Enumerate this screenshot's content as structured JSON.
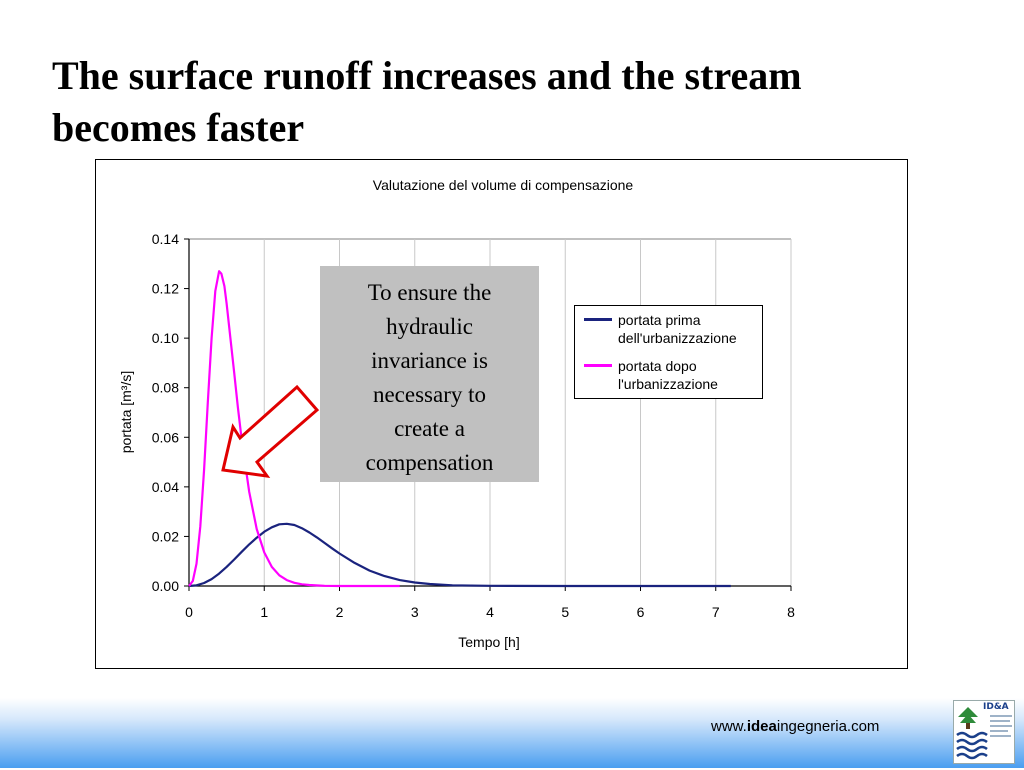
{
  "slide": {
    "title": "The surface runoff  increases and the stream\nbecomes faster"
  },
  "callout": {
    "text": "To ensure the\nhydraulic\ninvariance is\nnecessary to\ncreate a\ncompensation",
    "background": "#c0c0c0"
  },
  "arrow": {
    "color": "#e00000",
    "icon": "hollow-arrow-icon"
  },
  "footer": {
    "url_prefix": "www.",
    "url_bold": "idea",
    "url_suffix": "ingegneria.com",
    "logo_text": "ID&A"
  },
  "chart_data": {
    "type": "line",
    "title": "Valutazione del volume di compensazione",
    "xlabel": "Tempo [h]",
    "ylabel": "portata [m³/s]",
    "xlim": [
      0,
      8
    ],
    "ylim": [
      0,
      0.14
    ],
    "xticks": [
      "0",
      "1",
      "2",
      "3",
      "4",
      "5",
      "6",
      "7",
      "8"
    ],
    "yticks": [
      "0.00",
      "0.02",
      "0.04",
      "0.06",
      "0.08",
      "0.10",
      "0.12",
      "0.14"
    ],
    "grid": "vertical",
    "legend_position": "top-right",
    "series": [
      {
        "name": "portata prima\ndell'urbanizzazione",
        "color": "#1a237e",
        "x": [
          0,
          0.1,
          0.2,
          0.3,
          0.4,
          0.5,
          0.6,
          0.7,
          0.8,
          0.9,
          1.0,
          1.1,
          1.2,
          1.3,
          1.4,
          1.5,
          1.6,
          1.7,
          1.8,
          1.9,
          2.0,
          2.2,
          2.4,
          2.6,
          2.8,
          3.0,
          3.2,
          3.5,
          4.0,
          5.0,
          6.0,
          7.2
        ],
        "y": [
          0,
          0.0003,
          0.0012,
          0.0028,
          0.005,
          0.0077,
          0.0107,
          0.0138,
          0.0168,
          0.0195,
          0.0219,
          0.0237,
          0.0249,
          0.0251,
          0.0246,
          0.0233,
          0.0216,
          0.0196,
          0.0174,
          0.0152,
          0.0131,
          0.0093,
          0.0062,
          0.004,
          0.0024,
          0.0014,
          0.0008,
          0.0003,
          0.0001,
          0,
          0,
          0
        ]
      },
      {
        "name": "portata dopo\nl'urbanizzazione",
        "color": "#ff00ff",
        "x": [
          0,
          0.05,
          0.1,
          0.15,
          0.2,
          0.25,
          0.3,
          0.35,
          0.4,
          0.43,
          0.47,
          0.5,
          0.55,
          0.6,
          0.65,
          0.7,
          0.8,
          0.9,
          1.0,
          1.1,
          1.2,
          1.3,
          1.4,
          1.5,
          1.6,
          1.8,
          2.0,
          2.2,
          2.5,
          2.8
        ],
        "y": [
          0,
          0.002,
          0.009,
          0.024,
          0.047,
          0.074,
          0.1,
          0.119,
          0.127,
          0.126,
          0.121,
          0.114,
          0.1,
          0.086,
          0.072,
          0.059,
          0.038,
          0.023,
          0.0135,
          0.0077,
          0.0043,
          0.0024,
          0.0013,
          0.0007,
          0.0004,
          0.0001,
          0,
          0,
          0,
          0
        ]
      }
    ]
  }
}
